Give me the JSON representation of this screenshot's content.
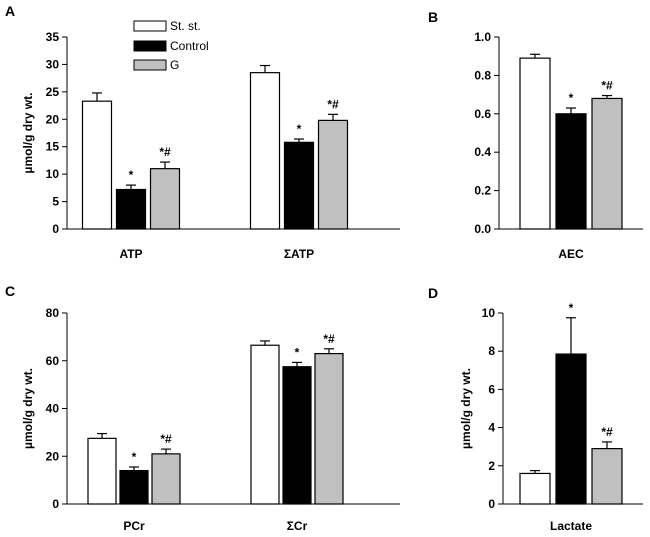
{
  "colors": {
    "st_st": "#ffffff",
    "control": "#000000",
    "g": "#c0c0c0",
    "axis": "#000000"
  },
  "legend": {
    "items": [
      "St. st.",
      "Control",
      "G"
    ]
  },
  "chart_data": [
    {
      "panel": "A",
      "type": "bar",
      "ylabel": "µmol/g dry wt.",
      "ylim": [
        0,
        35
      ],
      "yticks": [
        0,
        5,
        10,
        15,
        20,
        25,
        30,
        35
      ],
      "categories": [
        "ATP",
        "ΣATP"
      ],
      "series": [
        {
          "name": "St. st.",
          "values": [
            23.3,
            28.5
          ],
          "errors": [
            1.5,
            1.3
          ],
          "sig": [
            "",
            ""
          ]
        },
        {
          "name": "Control",
          "values": [
            7.2,
            15.8
          ],
          "errors": [
            0.8,
            0.6
          ],
          "sig": [
            "*",
            "*"
          ]
        },
        {
          "name": "G",
          "values": [
            11.0,
            19.8
          ],
          "errors": [
            1.2,
            1.1
          ],
          "sig": [
            "*#",
            "*#"
          ]
        }
      ]
    },
    {
      "panel": "B",
      "type": "bar",
      "ylabel": "",
      "ylim": [
        0,
        1.0
      ],
      "yticks": [
        "0.0",
        "0.2",
        "0.4",
        "0.6",
        "0.8",
        "1.0"
      ],
      "categories": [
        "AEC"
      ],
      "series": [
        {
          "name": "St. st.",
          "values": [
            0.89
          ],
          "errors": [
            0.02
          ],
          "sig": [
            ""
          ]
        },
        {
          "name": "Control",
          "values": [
            0.6
          ],
          "errors": [
            0.03
          ],
          "sig": [
            "*"
          ]
        },
        {
          "name": "G",
          "values": [
            0.68
          ],
          "errors": [
            0.015
          ],
          "sig": [
            "*#"
          ]
        }
      ]
    },
    {
      "panel": "C",
      "type": "bar",
      "ylabel": "µmol/g dry wt.",
      "ylim": [
        0,
        80
      ],
      "yticks": [
        0,
        20,
        40,
        60,
        80
      ],
      "categories": [
        "PCr",
        "ΣCr"
      ],
      "series": [
        {
          "name": "St. st.",
          "values": [
            27.5,
            66.5
          ],
          "errors": [
            2.0,
            1.8
          ],
          "sig": [
            "",
            ""
          ]
        },
        {
          "name": "Control",
          "values": [
            14.0,
            57.5
          ],
          "errors": [
            1.5,
            1.8
          ],
          "sig": [
            "*",
            "*"
          ]
        },
        {
          "name": "G",
          "values": [
            21.0,
            63.0
          ],
          "errors": [
            2.0,
            2.0
          ],
          "sig": [
            "*#",
            "*#"
          ]
        }
      ]
    },
    {
      "panel": "D",
      "type": "bar",
      "ylabel": "µmol/g dry wt.",
      "ylim": [
        0,
        10
      ],
      "yticks": [
        0,
        2,
        4,
        6,
        8,
        10
      ],
      "categories": [
        "Lactate"
      ],
      "series": [
        {
          "name": "St. st.",
          "values": [
            1.6
          ],
          "errors": [
            0.15
          ],
          "sig": [
            ""
          ]
        },
        {
          "name": "Control",
          "values": [
            7.85
          ],
          "errors": [
            1.9
          ],
          "sig": [
            "*"
          ]
        },
        {
          "name": "G",
          "values": [
            2.9
          ],
          "errors": [
            0.35
          ],
          "sig": [
            "*#"
          ]
        }
      ]
    }
  ]
}
